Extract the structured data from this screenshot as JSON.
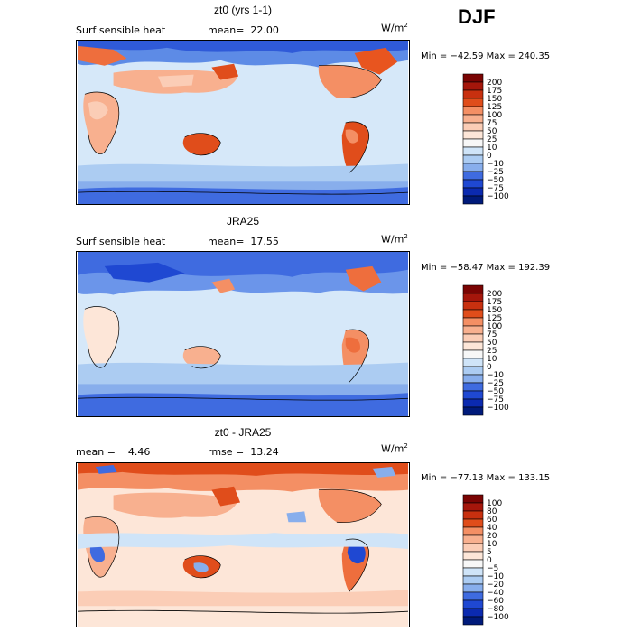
{
  "season": "DJF",
  "units": "W/m",
  "units_sup": "2",
  "colors": {
    "pos_scale": [
      "#7a0403",
      "#a5160b",
      "#c8300f",
      "#e04d1b",
      "#ee6e3d",
      "#f48f64",
      "#f8b08f",
      "#fbcdb6",
      "#fde6d8",
      "#f7f7f7",
      "#cfe4f8",
      "#acccf2",
      "#88aeec",
      "#648de6",
      "#3f6be0",
      "#1f48d2",
      "#0b2ab0",
      "#001a7a"
    ],
    "land_cold": "#4f7fe8"
  },
  "panels": [
    {
      "title": "zt0 (yrs 1-1)",
      "left_label": "Surf sensible heat",
      "stat1_label": "mean=",
      "stat1_value": "22.00",
      "stat2_label": "",
      "stat2_value": "",
      "min_max": "Min = −42.59 Max = 240.35",
      "levels": [
        "200",
        "175",
        "150",
        "125",
        "100",
        "75",
        "50",
        "25",
        "10",
        "0",
        "−10",
        "−25",
        "−50",
        "−75",
        "−100"
      ]
    },
    {
      "title": "JRA25",
      "left_label": "Surf sensible heat",
      "stat1_label": "mean=",
      "stat1_value": "17.55",
      "stat2_label": "",
      "stat2_value": "",
      "min_max": "Min = −58.47 Max = 192.39",
      "levels": [
        "200",
        "175",
        "150",
        "125",
        "100",
        "75",
        "50",
        "25",
        "10",
        "0",
        "−10",
        "−25",
        "−50",
        "−75",
        "−100"
      ]
    },
    {
      "title": "zt0 - JRA25",
      "left_label": "",
      "stat1_label": "mean =",
      "stat1_value": "4.46",
      "stat2_label": "rmse =",
      "stat2_value": "13.24",
      "min_max": "Min = −77.13 Max = 133.15",
      "levels": [
        "100",
        "80",
        "60",
        "40",
        "20",
        "10",
        "5",
        "0",
        "−5",
        "−10",
        "−20",
        "−40",
        "−60",
        "−80",
        "−100"
      ]
    }
  ],
  "chart_data": [
    {
      "type": "heatmap",
      "title": "zt0 (yrs 1-1)",
      "variable": "Surf sensible heat",
      "mean": 22.0,
      "min": -42.59,
      "max": 240.35,
      "units": "W/m2",
      "levels": [
        -100,
        -75,
        -50,
        -25,
        -10,
        0,
        10,
        25,
        50,
        75,
        100,
        125,
        150,
        175,
        200
      ]
    },
    {
      "type": "heatmap",
      "title": "JRA25",
      "variable": "Surf sensible heat",
      "mean": 17.55,
      "min": -58.47,
      "max": 192.39,
      "units": "W/m2",
      "levels": [
        -100,
        -75,
        -50,
        -25,
        -10,
        0,
        10,
        25,
        50,
        75,
        100,
        125,
        150,
        175,
        200
      ]
    },
    {
      "type": "heatmap",
      "title": "zt0 - JRA25",
      "mean": 4.46,
      "rmse": 13.24,
      "min": -77.13,
      "max": 133.15,
      "units": "W/m2",
      "levels": [
        -100,
        -80,
        -60,
        -40,
        -20,
        -10,
        -5,
        0,
        5,
        10,
        20,
        40,
        60,
        80,
        100
      ]
    }
  ]
}
